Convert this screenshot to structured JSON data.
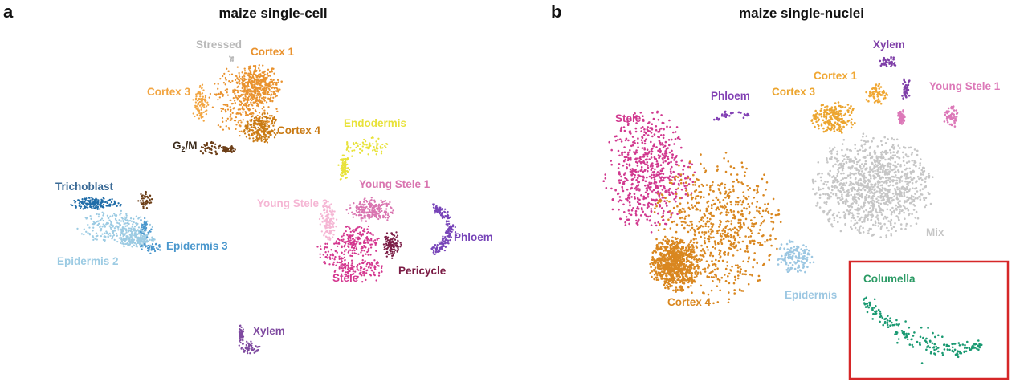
{
  "figure": {
    "panel_a_letter": "a",
    "panel_b_letter": "b",
    "highlight_box_color": "#d62728"
  },
  "chart_data": [
    {
      "type": "scatter",
      "title": "maize single-cell",
      "xlabel": "",
      "ylabel": "",
      "grid": false,
      "legend": "none (cluster labels placed directly on plot)",
      "clusters": [
        {
          "name": "Stressed",
          "label": "Stressed",
          "color": "#b8b8b8",
          "cells": 8
        },
        {
          "name": "Cortex 1",
          "label": "Cortex 1",
          "color": "#e9922e",
          "cells": 700
        },
        {
          "name": "Cortex 3",
          "label": "Cortex 3",
          "color": "#f2a541",
          "cells": 90
        },
        {
          "name": "Cortex 4",
          "label": "Cortex 4",
          "color": "#c97a14",
          "cells": 230
        },
        {
          "name": "G2/M",
          "label_main": "G",
          "label_sub": "2",
          "label_tail": "/M",
          "color": "#6b3d16",
          "cells": 90
        },
        {
          "name": "Endodermis",
          "label": "Endodermis",
          "color": "#e8e23a",
          "cells": 160
        },
        {
          "name": "Trichoblast",
          "label": "Trichoblast",
          "color": "#1f6ca8",
          "cells": 160
        },
        {
          "name": "Trichoblast (brown sub-cluster)",
          "color": "#6b3d16",
          "cells": 45
        },
        {
          "name": "Epidermis 2",
          "label": "Epidermis 2",
          "color": "#9ccbe3",
          "cells": 420
        },
        {
          "name": "Epidermis 3",
          "label": "Epidermis 3",
          "color": "#4a97cd",
          "cells": 80
        },
        {
          "name": "Young Stele 1",
          "label": "Young Stele 1",
          "color": "#d975b0",
          "cells": 220
        },
        {
          "name": "Young Stele 2",
          "label": "Young Stele 2",
          "color": "#f5b6d4",
          "cells": 120
        },
        {
          "name": "Stele",
          "label": "Stele",
          "color": "#d4378f",
          "cells": 380
        },
        {
          "name": "Pericycle",
          "label": "Pericycle",
          "color": "#7b1c45",
          "cells": 110
        },
        {
          "name": "Phloem",
          "label": "Phloem",
          "color": "#7744b8",
          "cells": 180
        },
        {
          "name": "Xylem",
          "label": "Xylem",
          "color": "#7f4aa0",
          "cells": 110
        }
      ]
    },
    {
      "type": "scatter",
      "title": "maize single-nuclei",
      "xlabel": "",
      "ylabel": "",
      "grid": false,
      "legend": "none (cluster labels placed directly on plot)",
      "highlight": "Columella (boxed)",
      "clusters": [
        {
          "name": "Xylem",
          "label": "Xylem",
          "color": "#7f3fa8",
          "cells": 80
        },
        {
          "name": "Cortex 1",
          "label": "Cortex 1",
          "color": "#f0a733",
          "cells": 60
        },
        {
          "name": "Cortex 3",
          "label": "Cortex 3",
          "color": "#eca52f",
          "cells": 200
        },
        {
          "name": "Young Stele 1",
          "label": "Young Stele 1",
          "color": "#dc78b8",
          "cells": 110
        },
        {
          "name": "Phloem",
          "label": "Phloem",
          "color": "#8240b4",
          "cells": 28
        },
        {
          "name": "Stele",
          "label": "Stele",
          "color": "#d1398f",
          "cells": 620
        },
        {
          "name": "Cortex 4",
          "label": "Cortex 4",
          "color": "#d98720",
          "cells": 1400
        },
        {
          "name": "Mix",
          "label": "Mix",
          "color": "#c6c6c6",
          "cells": 1100
        },
        {
          "name": "Epidermis",
          "label": "Epidermis",
          "color": "#9cc7e2",
          "cells": 140
        },
        {
          "name": "Columella",
          "label": "Columella",
          "color": "#1a9a72",
          "cells": 190
        }
      ]
    }
  ]
}
